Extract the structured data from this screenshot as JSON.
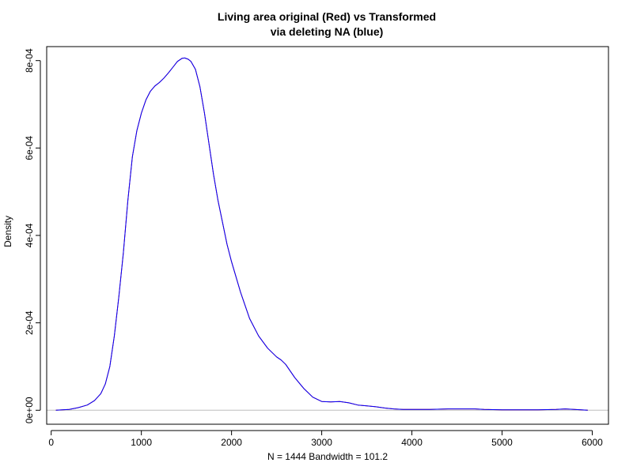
{
  "chart_data": {
    "type": "line",
    "title_line1": "Living area original (Red) vs Transformed",
    "title_line2": "via  deleting NA (blue)",
    "xlabel": "N = 1444   Bandwidth = 101.2",
    "ylabel": "Density",
    "xlim": [
      -50,
      6180
    ],
    "ylim": [
      -3.2e-05,
      0.000832
    ],
    "x_ticks": [
      0,
      1000,
      2000,
      3000,
      4000,
      5000,
      6000
    ],
    "x_tick_labels": [
      "0",
      "1000",
      "2000",
      "3000",
      "4000",
      "5000",
      "6000"
    ],
    "y_ticks": [
      0,
      0.0002,
      0.0004,
      0.0006,
      0.0008
    ],
    "y_tick_labels": [
      "0e+00",
      "2e-04",
      "4e-04",
      "6e-04",
      "8e-04"
    ],
    "baseline": 0,
    "grid": false,
    "legend": "none",
    "series": [
      {
        "color": "#cc0000",
        "x": [
          52,
          200,
          300,
          400,
          480,
          550,
          600,
          650,
          700,
          750,
          800,
          850,
          900,
          950,
          1000,
          1050,
          1100,
          1150,
          1200,
          1250,
          1300,
          1350,
          1400,
          1450,
          1480,
          1520,
          1550,
          1600,
          1650,
          1700,
          1750,
          1800,
          1850,
          1900,
          1950,
          2000,
          2100,
          2200,
          2300,
          2400,
          2500,
          2550,
          2600,
          2700,
          2800,
          2900,
          3000,
          3100,
          3200,
          3300,
          3400,
          3500,
          3600,
          3700,
          3800,
          3900,
          4000,
          4200,
          4400,
          4600,
          4700,
          4800,
          5000,
          5200,
          5400,
          5600,
          5700,
          5800,
          5950
        ],
        "y": [
          0,
          2e-06,
          6e-06,
          1.2e-05,
          2.2e-05,
          3.8e-05,
          6e-05,
          0.0001,
          0.00017,
          0.00026,
          0.00036,
          0.00048,
          0.00058,
          0.00064,
          0.00068,
          0.00071,
          0.00073,
          0.000742,
          0.00075,
          0.00076,
          0.000772,
          0.000785,
          0.000798,
          0.000805,
          0.000806,
          0.000803,
          0.000798,
          0.00078,
          0.00074,
          0.00068,
          0.00061,
          0.00054,
          0.00048,
          0.00043,
          0.00038,
          0.00034,
          0.00027,
          0.00021,
          0.00017,
          0.000142,
          0.000122,
          0.000115,
          0.000105,
          7.5e-05,
          5e-05,
          3e-05,
          2e-05,
          1.9e-05,
          2e-05,
          1.7e-05,
          1.2e-05,
          1e-05,
          8e-06,
          5e-06,
          3e-06,
          2e-06,
          2e-06,
          2e-06,
          3e-06,
          3e-06,
          3e-06,
          2e-06,
          1e-06,
          1e-06,
          1e-06,
          2e-06,
          3e-06,
          2e-06,
          0
        ]
      },
      {
        "color": "#0000ff",
        "x": [
          52,
          200,
          300,
          400,
          480,
          550,
          600,
          650,
          700,
          750,
          800,
          850,
          900,
          950,
          1000,
          1050,
          1100,
          1150,
          1200,
          1250,
          1300,
          1350,
          1400,
          1450,
          1480,
          1520,
          1550,
          1600,
          1650,
          1700,
          1750,
          1800,
          1850,
          1900,
          1950,
          2000,
          2100,
          2200,
          2300,
          2400,
          2500,
          2550,
          2600,
          2700,
          2800,
          2900,
          3000,
          3100,
          3200,
          3300,
          3400,
          3500,
          3600,
          3700,
          3800,
          3900,
          4000,
          4200,
          4400,
          4600,
          4700,
          4800,
          5000,
          5200,
          5400,
          5600,
          5700,
          5800,
          5950
        ],
        "y": [
          0,
          2e-06,
          6e-06,
          1.2e-05,
          2.2e-05,
          3.8e-05,
          6e-05,
          0.0001,
          0.00017,
          0.00026,
          0.00036,
          0.00048,
          0.00058,
          0.00064,
          0.00068,
          0.00071,
          0.00073,
          0.000742,
          0.00075,
          0.00076,
          0.000772,
          0.000785,
          0.000798,
          0.000805,
          0.000806,
          0.000803,
          0.000798,
          0.00078,
          0.00074,
          0.00068,
          0.00061,
          0.00054,
          0.00048,
          0.00043,
          0.00038,
          0.00034,
          0.00027,
          0.00021,
          0.00017,
          0.000142,
          0.000122,
          0.000115,
          0.000105,
          7.5e-05,
          5e-05,
          3e-05,
          2e-05,
          1.9e-05,
          2e-05,
          1.7e-05,
          1.2e-05,
          1e-05,
          8e-06,
          5e-06,
          3e-06,
          2e-06,
          2e-06,
          2e-06,
          3e-06,
          3e-06,
          3e-06,
          2e-06,
          1e-06,
          1e-06,
          1e-06,
          2e-06,
          3e-06,
          2e-06,
          0
        ]
      }
    ]
  }
}
